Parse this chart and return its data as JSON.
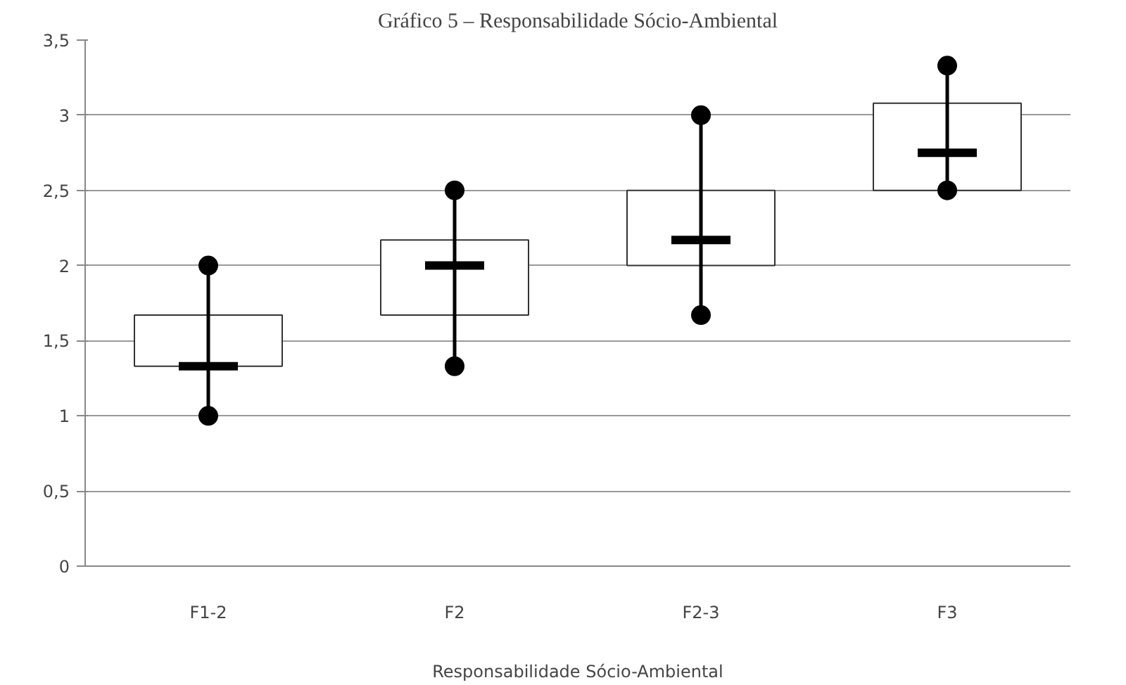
{
  "chart_data": {
    "type": "box",
    "title": "Gráfico 5 – Responsabilidade Sócio-Ambiental",
    "xlabel": "Responsabilidade Sócio-Ambiental",
    "categories": [
      "F1-2",
      "F2",
      "F2-3",
      "F3"
    ],
    "boxes": [
      {
        "low": 1,
        "q1": 1.33,
        "median": 1.33,
        "q3": 1.67,
        "high": 2
      },
      {
        "low": 1.33,
        "q1": 1.67,
        "median": 2,
        "q3": 2.17,
        "high": 2.5
      },
      {
        "low": 1.67,
        "q1": 2,
        "median": 2.17,
        "q3": 2.5,
        "high": 3
      },
      {
        "low": 2.5,
        "q1": 2.5,
        "median": 2.75,
        "q3": 3.08,
        "high": 3.33
      }
    ],
    "color": "#ffffff",
    "ylim": [
      0,
      3.5
    ],
    "yticks": [
      0,
      {
        "value": 0.5,
        "label": "0,5"
      },
      1,
      {
        "value": 1.5,
        "label": "1,5"
      },
      2,
      {
        "value": 2.5,
        "label": "2,5"
      },
      3,
      {
        "value": 3.5,
        "label": "3,5"
      }
    ],
    "grid": "y",
    "series": [
      {
        "type": "scatter",
        "color": "#000000",
        "marker": "circle",
        "x": [
          "F1-2",
          "F2",
          "F2-3",
          "F3",
          "F1-2",
          "F2",
          "F2-3",
          "F3"
        ],
        "values": [
          1,
          1.33,
          1.67,
          2.5,
          2,
          2.5,
          3,
          3.33
        ]
      }
    ]
  }
}
